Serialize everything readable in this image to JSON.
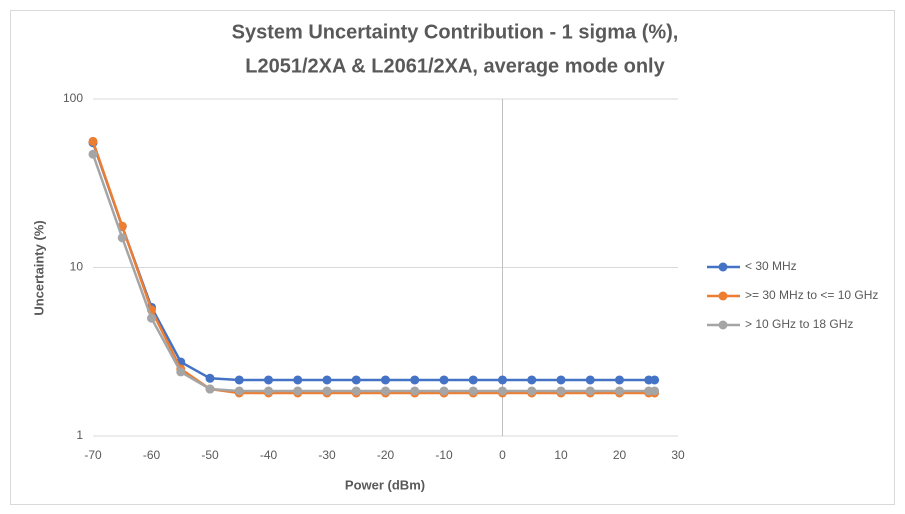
{
  "chart_data": {
    "type": "line",
    "title": [
      "System Uncertainty Contribution - 1 sigma (%),",
      "L2051/2XA & L2061/2XA, average mode only"
    ],
    "x_label": "Power (dBm)",
    "y_label": "Uncertainty (%)",
    "x": [
      -70,
      -65,
      -60,
      -55,
      -50,
      -45,
      -40,
      -35,
      -30,
      -25,
      -20,
      -15,
      -10,
      -5,
      0,
      5,
      10,
      15,
      20,
      25,
      26
    ],
    "series": [
      {
        "name": "< 30 MHz",
        "color": "#4472c4",
        "values": [
          55,
          17.5,
          5.8,
          2.75,
          2.2,
          2.15,
          2.15,
          2.15,
          2.15,
          2.15,
          2.15,
          2.15,
          2.15,
          2.15,
          2.15,
          2.15,
          2.15,
          2.15,
          2.15,
          2.15,
          2.15
        ]
      },
      {
        "name": ">= 30 MHz to <= 10 GHz",
        "color": "#ed7d31",
        "values": [
          56,
          17.6,
          5.6,
          2.5,
          1.9,
          1.8,
          1.8,
          1.8,
          1.8,
          1.8,
          1.8,
          1.8,
          1.8,
          1.8,
          1.8,
          1.8,
          1.8,
          1.8,
          1.8,
          1.8,
          1.8
        ]
      },
      {
        "name": "> 10 GHz to 18 GHz",
        "color": "#a5a5a5",
        "values": [
          47,
          15,
          5,
          2.4,
          1.9,
          1.85,
          1.85,
          1.85,
          1.85,
          1.85,
          1.85,
          1.85,
          1.85,
          1.85,
          1.85,
          1.85,
          1.85,
          1.85,
          1.85,
          1.85,
          1.85
        ]
      }
    ],
    "xlim": [
      -70,
      30
    ],
    "xticks": [
      -70,
      -60,
      -50,
      -40,
      -30,
      -20,
      -10,
      0,
      10,
      20,
      30
    ],
    "ylim": [
      1,
      100
    ],
    "yticks": [
      1,
      10,
      100
    ],
    "y_log": true,
    "grid": true,
    "legend": "right"
  }
}
